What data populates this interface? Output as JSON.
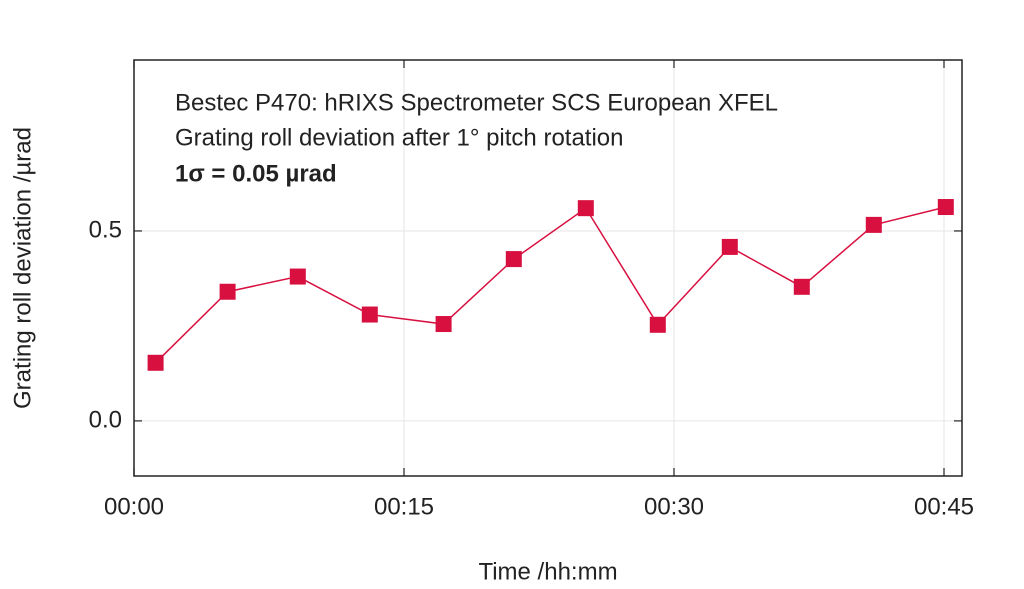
{
  "chart_data": {
    "type": "line",
    "annotations": [
      "Bestec P470: hRIXS Spectrometer SCS European XFEL",
      "Grating roll deviation after 1° pitch rotation",
      "1σ = 0.05 µrad"
    ],
    "x_label": "Time /hh:mm",
    "y_label": "Grating roll deviation /µrad",
    "x": [
      1.2,
      5.2,
      9.1,
      13.1,
      17.2,
      21.1,
      25.1,
      29.1,
      33.1,
      37.1,
      41.1,
      45.1
    ],
    "values": [
      0.153,
      0.34,
      0.38,
      0.28,
      0.255,
      0.426,
      0.56,
      0.253,
      0.458,
      0.353,
      0.516,
      0.563
    ],
    "color": "#d8103f",
    "xlim": [
      0,
      46
    ],
    "xticks": [
      {
        "value": 0,
        "label": "00:00"
      },
      {
        "value": 15,
        "label": "00:15"
      },
      {
        "value": 30,
        "label": "00:30"
      },
      {
        "value": 45,
        "label": "00:45"
      }
    ],
    "ylim": [
      -0.145,
      0.95
    ],
    "yticks": [
      {
        "value": 0,
        "label": "0.0"
      },
      0.5
    ],
    "grid": true
  }
}
